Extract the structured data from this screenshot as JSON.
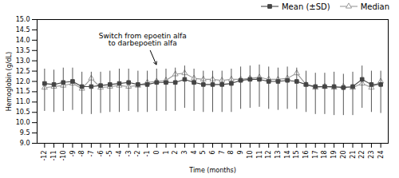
{
  "chart_data": {
    "type": "line",
    "xlabel": "Time (months)",
    "ylabel": "Hemoglobin (g/dL)",
    "x": [
      -12,
      -11,
      -10,
      -9,
      -8,
      -7,
      -6,
      -5,
      -4,
      -3,
      -2,
      -1,
      0,
      1,
      2,
      3,
      4,
      5,
      6,
      7,
      8,
      9,
      10,
      11,
      12,
      13,
      14,
      15,
      16,
      17,
      18,
      19,
      20,
      21,
      22,
      23,
      24
    ],
    "xlim": [
      -12.8,
      24.8
    ],
    "xticks": [
      -12,
      -11,
      -10,
      -9,
      -8,
      -7,
      -6,
      -5,
      -4,
      -3,
      -2,
      -1,
      0,
      1,
      2,
      3,
      4,
      5,
      6,
      7,
      8,
      9,
      10,
      11,
      12,
      13,
      14,
      15,
      16,
      17,
      18,
      19,
      20,
      21,
      22,
      23,
      24
    ],
    "ylim": [
      9.0,
      15.0
    ],
    "yticks": [
      {
        "value": 9.0,
        "label": "9.0"
      },
      {
        "value": 9.5,
        "label": "9.5"
      },
      {
        "value": 10.0,
        "label": "10.0"
      },
      {
        "value": 10.5,
        "label": "10.5"
      },
      {
        "value": 11.0,
        "label": "11.0"
      },
      {
        "value": 11.5,
        "label": "11.5"
      },
      {
        "value": 12.0,
        "label": "12.0"
      },
      {
        "value": 12.5,
        "label": "12.5"
      },
      {
        "value": 13.0,
        "label": "13.0"
      },
      {
        "value": 13.5,
        "label": "13.5"
      },
      {
        "value": 14.0,
        "label": "14.0"
      },
      {
        "value": 14.5,
        "label": "14.5"
      },
      {
        "value": 15.0,
        "label": "15.0"
      }
    ],
    "grid": false,
    "legend": "upper right",
    "series": [
      {
        "name": "Mean (±SD)",
        "color": "#444444",
        "marker": "square",
        "line_style": "solid",
        "values": [
          11.9,
          11.85,
          11.95,
          12.0,
          11.75,
          11.75,
          11.8,
          11.85,
          11.9,
          11.95,
          11.85,
          11.85,
          11.95,
          11.95,
          11.95,
          12.1,
          11.95,
          11.85,
          11.85,
          11.85,
          11.9,
          12.05,
          12.1,
          12.1,
          12.0,
          12.0,
          12.05,
          12.0,
          11.85,
          11.75,
          11.75,
          11.75,
          11.7,
          11.75,
          12.1,
          11.85,
          11.85
        ],
        "sd_upper": [
          12.6,
          12.55,
          12.65,
          12.65,
          12.45,
          12.45,
          12.45,
          12.5,
          12.6,
          12.6,
          12.5,
          12.5,
          12.6,
          12.6,
          12.65,
          12.75,
          12.6,
          12.5,
          12.5,
          12.5,
          12.6,
          12.7,
          12.75,
          12.8,
          12.7,
          12.65,
          12.7,
          12.65,
          12.5,
          12.4,
          12.4,
          12.45,
          12.35,
          12.45,
          12.75,
          12.5,
          12.5
        ],
        "sd_lower": [
          10.55,
          10.5,
          10.55,
          10.6,
          10.4,
          10.4,
          10.45,
          10.5,
          10.5,
          10.55,
          10.5,
          10.5,
          10.55,
          10.55,
          10.55,
          10.7,
          10.55,
          10.5,
          10.5,
          10.5,
          10.5,
          10.65,
          10.7,
          10.75,
          10.65,
          10.6,
          10.65,
          10.65,
          10.5,
          10.4,
          10.4,
          10.35,
          10.35,
          10.35,
          10.7,
          10.5,
          10.45
        ]
      },
      {
        "name": "Median",
        "color": "#999999",
        "marker": "triangle",
        "line_style": "solid",
        "values": [
          11.7,
          11.75,
          11.8,
          11.9,
          11.65,
          12.15,
          11.7,
          11.75,
          11.8,
          11.75,
          11.8,
          11.95,
          12.0,
          12.05,
          12.35,
          12.4,
          12.15,
          12.1,
          12.1,
          12.05,
          12.1,
          12.1,
          12.15,
          12.2,
          12.1,
          12.1,
          12.15,
          12.4,
          11.85,
          11.7,
          11.75,
          11.7,
          11.75,
          11.7,
          11.9,
          11.7,
          12.0
        ]
      }
    ],
    "annotations": [
      {
        "text": "Switch from epoetin alfa\nto darbepoetin alfa",
        "x": 0,
        "y": 12.78,
        "text_x": -1.5,
        "text_y": 14.35
      }
    ]
  }
}
